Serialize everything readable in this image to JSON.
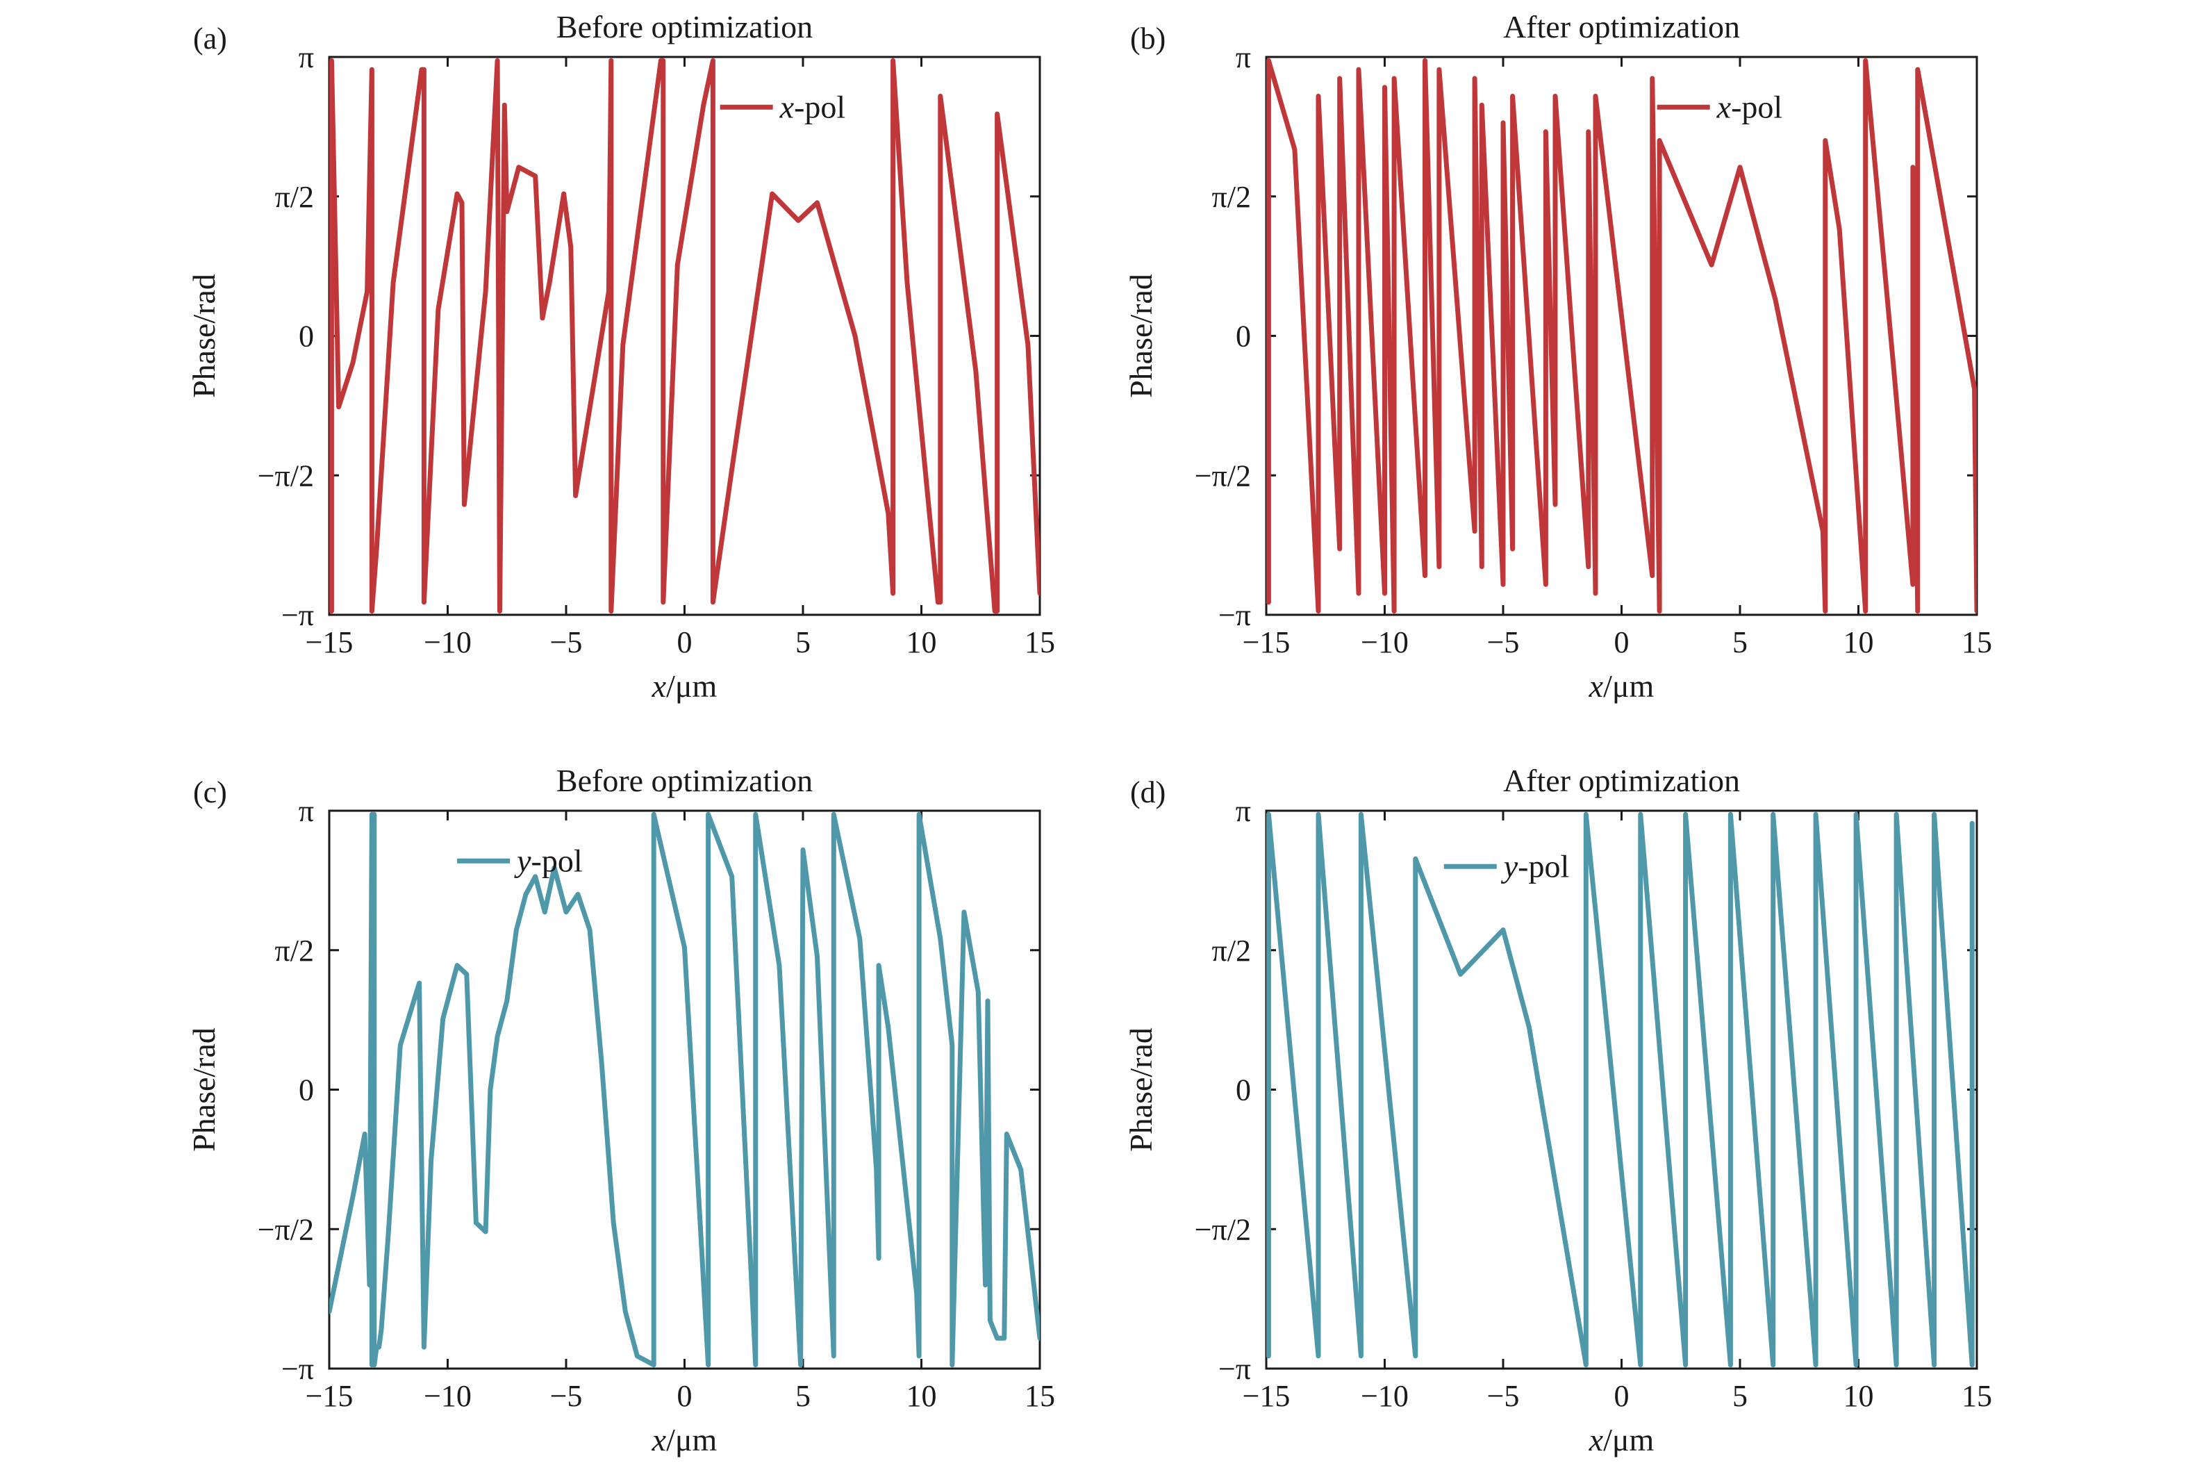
{
  "colors": {
    "xpol": "#C0373A",
    "ypol": "#4F98AA",
    "axis": "#1a1a1a"
  },
  "chart_data": [
    {
      "type": "line",
      "label": "(a)",
      "title": "Before optimization",
      "xlabel_var": "x",
      "xlabel_unit": "/μm",
      "ylabel": "Phase/rad",
      "xlim": [
        -15,
        15
      ],
      "ylim": [
        -3.1416,
        3.1416
      ],
      "xticks": [
        -15,
        -10,
        -5,
        0,
        5,
        10,
        15
      ],
      "xtick_labels": [
        "−15",
        "−10",
        "−5",
        "0",
        "5",
        "10",
        "15"
      ],
      "yticks": [
        -3.1416,
        -1.5708,
        0,
        1.5708,
        3.1416
      ],
      "ytick_labels": [
        "−π",
        "−π/2",
        "0",
        "π/2",
        "π"
      ],
      "legend_position": "top-right",
      "series": [
        {
          "name_var": "x",
          "name_rest": "-pol",
          "color_key": "xpol",
          "x": [
            -14.9,
            -14.9,
            -14.6,
            -14.0,
            -13.4,
            -13.2,
            -13.2,
            -13.0,
            -12.3,
            -11.1,
            -11.0,
            -11.0,
            -10.4,
            -9.6,
            -9.4,
            -9.3,
            -8.4,
            -7.9,
            -7.9,
            -7.8,
            -7.8,
            -7.6,
            -7.6,
            -7.5,
            -7.0,
            -6.3,
            -6.0,
            -5.7,
            -5.1,
            -4.8,
            -4.6,
            -3.2,
            -3.1,
            -3.1,
            -2.6,
            -1.0,
            -0.9,
            -0.9,
            -0.3,
            0.8,
            1.2,
            1.2,
            2.0,
            3.7,
            4.8,
            5.6,
            7.2,
            8.6,
            8.8,
            8.8,
            9.4,
            10.7,
            10.8,
            10.8,
            12.3,
            13.1,
            13.2,
            13.2,
            14.5,
            15.0
          ],
          "y": [
            -3.1,
            3.1,
            -0.8,
            -0.3,
            0.5,
            3.0,
            -3.1,
            -2.4,
            0.6,
            3.0,
            3.0,
            -3.0,
            0.3,
            1.6,
            1.5,
            -1.9,
            0.5,
            3.1,
            3.1,
            -3.1,
            -3.1,
            2.6,
            2.6,
            1.4,
            1.9,
            1.8,
            0.2,
            0.6,
            1.6,
            1.0,
            -1.8,
            0.5,
            3.1,
            -3.1,
            -0.1,
            3.1,
            3.1,
            -3.0,
            0.8,
            2.6,
            3.1,
            -3.0,
            -1.5,
            1.6,
            1.3,
            1.5,
            0.0,
            -2.0,
            -2.9,
            3.1,
            0.6,
            -3.0,
            -3.0,
            2.7,
            -0.4,
            -3.1,
            -3.1,
            2.5,
            -0.1,
            -2.9
          ]
        }
      ]
    },
    {
      "type": "line",
      "label": "(b)",
      "title": "After optimization",
      "xlabel_var": "x",
      "xlabel_unit": "/μm",
      "ylabel": "Phase/rad",
      "xlim": [
        -15,
        15
      ],
      "ylim": [
        -3.1416,
        3.1416
      ],
      "xticks": [
        -15,
        -10,
        -5,
        0,
        5,
        10,
        15
      ],
      "xtick_labels": [
        "−15",
        "−10",
        "−5",
        "0",
        "5",
        "10",
        "15"
      ],
      "yticks": [
        -3.1416,
        -1.5708,
        0,
        1.5708,
        3.1416
      ],
      "ytick_labels": [
        "−π",
        "−π/2",
        "0",
        "π/2",
        "π"
      ],
      "legend_position": "top-right",
      "series": [
        {
          "name_var": "x",
          "name_rest": "-pol",
          "color_key": "xpol",
          "x": [
            -14.9,
            -14.9,
            -13.8,
            -12.8,
            -12.8,
            -11.9,
            -11.9,
            -11.1,
            -11.1,
            -10.0,
            -10.0,
            -9.6,
            -9.6,
            -8.3,
            -8.3,
            -7.7,
            -7.7,
            -6.2,
            -6.2,
            -5.9,
            -5.9,
            -5.0,
            -5.0,
            -4.6,
            -4.6,
            -3.2,
            -3.2,
            -2.8,
            -2.8,
            -1.4,
            -1.4,
            -1.1,
            -1.1,
            1.3,
            1.3,
            1.6,
            1.6,
            3.8,
            5.0,
            6.5,
            8.5,
            8.6,
            8.6,
            9.2,
            10.3,
            10.3,
            11.5,
            12.3,
            12.3,
            12.5,
            12.5,
            14.9,
            15.0
          ],
          "y": [
            -3.0,
            3.1,
            2.1,
            -3.1,
            2.7,
            -2.4,
            2.9,
            -2.9,
            3.0,
            -2.9,
            2.8,
            -3.1,
            2.9,
            -2.7,
            3.1,
            -2.6,
            3.0,
            -2.2,
            2.9,
            -2.6,
            2.6,
            -2.8,
            2.4,
            -2.4,
            2.7,
            -2.8,
            2.3,
            -1.9,
            2.7,
            -2.6,
            2.3,
            -2.9,
            2.7,
            -2.7,
            2.9,
            -3.1,
            2.2,
            0.8,
            1.9,
            0.4,
            -2.2,
            -3.1,
            2.2,
            1.2,
            -3.1,
            3.1,
            -0.4,
            -2.8,
            1.9,
            -3.1,
            3.0,
            -0.6,
            -3.1
          ]
        }
      ]
    },
    {
      "type": "line",
      "label": "(c)",
      "title": "Before optimization",
      "xlabel_var": "x",
      "xlabel_unit": "/μm",
      "ylabel": "Phase/rad",
      "xlim": [
        -15,
        15
      ],
      "ylim": [
        -3.1416,
        3.1416
      ],
      "xticks": [
        -15,
        -10,
        -5,
        0,
        5,
        10,
        15
      ],
      "xtick_labels": [
        "−15",
        "−10",
        "−5",
        "0",
        "5",
        "10",
        "15"
      ],
      "yticks": [
        -3.1416,
        -1.5708,
        0,
        1.5708,
        3.1416
      ],
      "ytick_labels": [
        "−π",
        "−π/2",
        "0",
        "π/2",
        "π"
      ],
      "legend_position": "top-left",
      "series": [
        {
          "name_var": "y",
          "name_rest": "-pol",
          "color_key": "ypol",
          "x": [
            -15.0,
            -14.0,
            -13.5,
            -13.3,
            -13.2,
            -13.2,
            -13.1,
            -13.1,
            -13.0,
            -12.9,
            -12.8,
            -12.5,
            -12.0,
            -11.2,
            -11.0,
            -11.0,
            -10.7,
            -10.2,
            -9.6,
            -9.2,
            -8.8,
            -8.4,
            -8.2,
            -7.9,
            -7.5,
            -7.1,
            -6.7,
            -6.3,
            -5.9,
            -5.5,
            -5.0,
            -4.5,
            -4.0,
            -3.5,
            -3.0,
            -2.5,
            -2.0,
            -1.3,
            -1.3,
            0.0,
            1.0,
            1.0,
            2.0,
            3.0,
            3.0,
            4.0,
            4.9,
            5.0,
            5.6,
            6.3,
            6.3,
            7.4,
            8.1,
            8.2,
            8.2,
            8.6,
            9.8,
            9.9,
            9.9,
            10.8,
            11.3,
            11.3,
            11.8,
            12.4,
            12.7,
            12.8,
            12.9,
            13.2,
            13.5,
            13.6,
            14.2,
            15.0
          ],
          "y": [
            -2.5,
            -1.2,
            -0.5,
            -2.2,
            3.1,
            -3.1,
            3.1,
            -3.1,
            -2.9,
            -2.9,
            -2.7,
            -1.6,
            0.5,
            1.2,
            -2.9,
            -2.9,
            -0.8,
            0.8,
            1.4,
            1.3,
            -1.5,
            -1.6,
            0.0,
            0.6,
            1.0,
            1.8,
            2.2,
            2.4,
            2.0,
            2.5,
            2.0,
            2.2,
            1.8,
            0.3,
            -1.5,
            -2.5,
            -3.0,
            -3.1,
            3.1,
            1.6,
            -3.1,
            3.1,
            2.4,
            -3.1,
            3.1,
            1.4,
            -3.1,
            2.7,
            1.5,
            -3.0,
            3.1,
            1.7,
            -0.9,
            -1.9,
            1.4,
            0.7,
            -2.3,
            -3.0,
            3.1,
            1.7,
            0.5,
            -3.1,
            2.0,
            1.1,
            -2.2,
            1.0,
            -2.6,
            -2.8,
            -2.8,
            -0.5,
            -0.9,
            -2.8
          ]
        }
      ]
    },
    {
      "type": "line",
      "label": "(d)",
      "title": "After optimization",
      "xlabel_var": "x",
      "xlabel_unit": "/μm",
      "ylabel": "Phase/rad",
      "xlim": [
        -15,
        15
      ],
      "ylim": [
        -3.1416,
        3.1416
      ],
      "xticks": [
        -15,
        -10,
        -5,
        0,
        5,
        10,
        15
      ],
      "xtick_labels": [
        "−15",
        "−10",
        "−5",
        "0",
        "5",
        "10",
        "15"
      ],
      "yticks": [
        -3.1416,
        -1.5708,
        0,
        1.5708,
        3.1416
      ],
      "ytick_labels": [
        "−π",
        "−π/2",
        "0",
        "π/2",
        "π"
      ],
      "legend_position": "top-center",
      "series": [
        {
          "name_var": "y",
          "name_rest": "-pol",
          "color_key": "ypol",
          "x": [
            -14.9,
            -14.9,
            -12.8,
            -12.8,
            -11.0,
            -11.0,
            -8.7,
            -8.7,
            -6.8,
            -5.0,
            -3.9,
            -1.5,
            -1.5,
            0.8,
            0.8,
            2.7,
            2.7,
            4.6,
            4.6,
            6.4,
            6.4,
            8.2,
            8.2,
            9.9,
            9.9,
            11.6,
            11.6,
            13.2,
            13.2,
            14.8,
            14.8
          ],
          "y": [
            -3.0,
            3.1,
            -3.0,
            3.1,
            -3.0,
            3.1,
            -3.0,
            2.6,
            1.3,
            1.8,
            0.7,
            -3.1,
            3.1,
            -3.1,
            3.1,
            -3.1,
            3.1,
            -3.1,
            3.1,
            -3.1,
            3.1,
            -3.1,
            3.1,
            -3.1,
            3.1,
            -3.1,
            3.1,
            -3.1,
            3.1,
            -3.1,
            3.0
          ]
        }
      ]
    }
  ]
}
